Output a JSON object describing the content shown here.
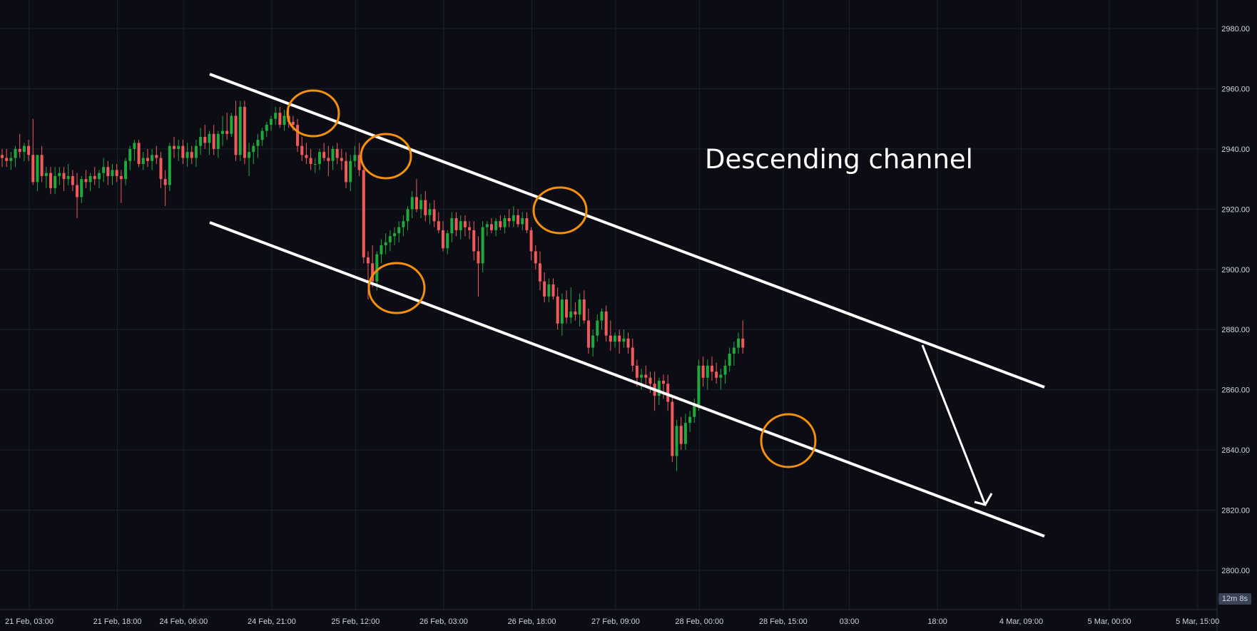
{
  "chart_data": {
    "type": "candlestick",
    "title": "",
    "annotation_text": "Descending channel",
    "ylim": [
      2790,
      2991
    ],
    "y_ticks": [
      "2980.00",
      "2960.00",
      "2940.00",
      "2920.00",
      "2900.00",
      "2880.00",
      "2860.00",
      "2840.00",
      "2820.00",
      "2800.00"
    ],
    "y_tick_values": [
      2980,
      2960,
      2940,
      2920,
      2900,
      2880,
      2860,
      2840,
      2820,
      2800
    ],
    "x_ticks": [
      "21 Feb, 03:00",
      "21 Feb, 18:00",
      "24 Feb, 06:00",
      "24 Feb, 21:00",
      "25 Feb, 12:00",
      "26 Feb, 03:00",
      "26 Feb, 18:00",
      "27 Feb, 09:00",
      "28 Feb, 00:00",
      "28 Feb, 15:00",
      "03:00",
      "18:00",
      "4 Mar, 09:00",
      "5 Mar, 00:00",
      "5 Mar, 15:00"
    ],
    "x_tick_index": [
      0,
      20,
      35,
      55,
      74,
      94,
      114,
      133,
      152,
      171,
      186,
      206,
      225,
      245,
      265
    ],
    "grid": true,
    "colors": {
      "background": "#0c0d14",
      "up": "#089981",
      "up_body": "#1fa83c",
      "down": "#f05a5a",
      "grid": "#1d202b",
      "axis_text": "#d1d4dc",
      "lines": "#ffffff",
      "circles": "#f4900c"
    },
    "countdown": "12m 8s",
    "candles": [
      [
        2938,
        2940,
        2934,
        2937
      ],
      [
        2937,
        2940,
        2934,
        2936
      ],
      [
        2936,
        2939,
        2933,
        2937
      ],
      [
        2937,
        2941,
        2934,
        2940
      ],
      [
        2940,
        2945,
        2937,
        2939
      ],
      [
        2939,
        2942,
        2936,
        2941
      ],
      [
        2941,
        2943,
        2936,
        2938
      ],
      [
        2938,
        2950,
        2928,
        2929
      ],
      [
        2929,
        2938,
        2926,
        2938
      ],
      [
        2938,
        2941,
        2929,
        2931
      ],
      [
        2931,
        2934,
        2927,
        2932
      ],
      [
        2932,
        2934,
        2925,
        2927
      ],
      [
        2927,
        2934,
        2925,
        2931
      ],
      [
        2931,
        2934,
        2928,
        2932
      ],
      [
        2932,
        2934,
        2926,
        2930
      ],
      [
        2930,
        2935,
        2928,
        2931
      ],
      [
        2931,
        2933,
        2926,
        2928
      ],
      [
        2928,
        2932,
        2917,
        2924
      ],
      [
        2924,
        2931,
        2922,
        2930
      ],
      [
        2930,
        2933,
        2927,
        2929
      ],
      [
        2929,
        2932,
        2926,
        2931
      ],
      [
        2931,
        2934,
        2928,
        2930
      ],
      [
        2930,
        2933,
        2927,
        2932
      ],
      [
        2932,
        2937,
        2929,
        2934
      ],
      [
        2934,
        2936,
        2928,
        2931
      ],
      [
        2931,
        2935,
        2928,
        2933
      ],
      [
        2933,
        2935,
        2929,
        2931
      ],
      [
        2931,
        2933,
        2922,
        2930
      ],
      [
        2930,
        2937,
        2928,
        2936
      ],
      [
        2936,
        2941,
        2933,
        2940
      ],
      [
        2940,
        2943,
        2936,
        2942
      ],
      [
        2942,
        2943,
        2934,
        2935
      ],
      [
        2935,
        2939,
        2933,
        2937
      ],
      [
        2937,
        2940,
        2934,
        2936
      ],
      [
        2936,
        2940,
        2933,
        2938
      ],
      [
        2938,
        2941,
        2935,
        2937
      ],
      [
        2937,
        2939,
        2927,
        2930
      ],
      [
        2930,
        2933,
        2921,
        2928
      ],
      [
        2928,
        2942,
        2926,
        2941
      ],
      [
        2941,
        2944,
        2937,
        2940
      ],
      [
        2940,
        2943,
        2936,
        2941
      ],
      [
        2941,
        2943,
        2935,
        2937
      ],
      [
        2937,
        2942,
        2934,
        2939
      ],
      [
        2939,
        2941,
        2935,
        2937
      ],
      [
        2937,
        2943,
        2934,
        2941
      ],
      [
        2941,
        2947,
        2938,
        2944
      ],
      [
        2944,
        2948,
        2940,
        2942
      ],
      [
        2942,
        2946,
        2938,
        2945
      ],
      [
        2945,
        2948,
        2938,
        2940
      ],
      [
        2940,
        2946,
        2937,
        2945
      ],
      [
        2945,
        2951,
        2941,
        2946
      ],
      [
        2946,
        2952,
        2943,
        2945
      ],
      [
        2945,
        2952,
        2944,
        2951
      ],
      [
        2951,
        2956,
        2936,
        2938
      ],
      [
        2938,
        2956,
        2936,
        2954
      ],
      [
        2954,
        2956,
        2935,
        2937
      ],
      [
        2937,
        2942,
        2931,
        2939
      ],
      [
        2939,
        2942,
        2935,
        2941
      ],
      [
        2941,
        2945,
        2937,
        2943
      ],
      [
        2943,
        2947,
        2941,
        2946
      ],
      [
        2946,
        2949,
        2944,
        2948
      ],
      [
        2948,
        2951,
        2946,
        2950
      ],
      [
        2950,
        2954,
        2948,
        2952
      ],
      [
        2952,
        2954,
        2947,
        2948
      ],
      [
        2948,
        2953,
        2946,
        2951
      ],
      [
        2951,
        2953,
        2947,
        2949
      ],
      [
        2949,
        2951,
        2946,
        2948
      ],
      [
        2948,
        2950,
        2939,
        2941
      ],
      [
        2941,
        2944,
        2936,
        2938
      ],
      [
        2938,
        2942,
        2935,
        2937
      ],
      [
        2937,
        2940,
        2933,
        2935
      ],
      [
        2935,
        2937,
        2932,
        2935
      ],
      [
        2935,
        2940,
        2933,
        2939
      ],
      [
        2939,
        2942,
        2936,
        2937
      ],
      [
        2937,
        2941,
        2931,
        2936
      ],
      [
        2936,
        2941,
        2933,
        2940
      ],
      [
        2940,
        2942,
        2935,
        2937
      ],
      [
        2937,
        2940,
        2933,
        2936
      ],
      [
        2936,
        2939,
        2927,
        2929
      ],
      [
        2929,
        2938,
        2926,
        2936
      ],
      [
        2936,
        2941,
        2934,
        2938
      ],
      [
        2938,
        2942,
        2931,
        2933
      ],
      [
        2933,
        2934,
        2902,
        2904
      ],
      [
        2904,
        2906,
        2890,
        2902
      ],
      [
        2902,
        2908,
        2894,
        2896
      ],
      [
        2896,
        2906,
        2893,
        2905
      ],
      [
        2905,
        2910,
        2902,
        2908
      ],
      [
        2908,
        2912,
        2905,
        2909
      ],
      [
        2909,
        2913,
        2906,
        2911
      ],
      [
        2911,
        2914,
        2908,
        2912
      ],
      [
        2912,
        2916,
        2909,
        2914
      ],
      [
        2914,
        2918,
        2911,
        2916
      ],
      [
        2916,
        2921,
        2913,
        2920
      ],
      [
        2920,
        2926,
        2917,
        2924
      ],
      [
        2924,
        2930,
        2919,
        2920
      ],
      [
        2920,
        2925,
        2917,
        2923
      ],
      [
        2923,
        2926,
        2916,
        2918
      ],
      [
        2918,
        2922,
        2915,
        2920
      ],
      [
        2920,
        2923,
        2914,
        2916
      ],
      [
        2916,
        2919,
        2912,
        2913
      ],
      [
        2913,
        2916,
        2906,
        2907
      ],
      [
        2907,
        2913,
        2905,
        2912
      ],
      [
        2912,
        2919,
        2909,
        2917
      ],
      [
        2917,
        2919,
        2911,
        2913
      ],
      [
        2913,
        2918,
        2910,
        2916
      ],
      [
        2916,
        2918,
        2911,
        2914
      ],
      [
        2914,
        2916,
        2910,
        2913
      ],
      [
        2913,
        2916,
        2903,
        2906
      ],
      [
        2906,
        2911,
        2891,
        2902
      ],
      [
        2902,
        2916,
        2899,
        2914
      ],
      [
        2914,
        2916,
        2911,
        2915
      ],
      [
        2915,
        2917,
        2912,
        2913
      ],
      [
        2913,
        2917,
        2911,
        2916
      ],
      [
        2916,
        2918,
        2913,
        2914
      ],
      [
        2914,
        2918,
        2912,
        2917
      ],
      [
        2917,
        2920,
        2914,
        2916
      ],
      [
        2916,
        2921,
        2914,
        2918
      ],
      [
        2918,
        2920,
        2914,
        2915
      ],
      [
        2915,
        2919,
        2913,
        2917
      ],
      [
        2917,
        2919,
        2912,
        2913
      ],
      [
        2913,
        2914,
        2903,
        2906
      ],
      [
        2906,
        2908,
        2900,
        2902
      ],
      [
        2902,
        2906,
        2893,
        2896
      ],
      [
        2896,
        2899,
        2889,
        2891
      ],
      [
        2891,
        2897,
        2889,
        2895
      ],
      [
        2895,
        2897,
        2890,
        2891
      ],
      [
        2891,
        2894,
        2880,
        2882
      ],
      [
        2882,
        2892,
        2878,
        2890
      ],
      [
        2890,
        2893,
        2882,
        2884
      ],
      [
        2884,
        2894,
        2882,
        2886
      ],
      [
        2886,
        2889,
        2883,
        2885
      ],
      [
        2885,
        2892,
        2881,
        2890
      ],
      [
        2890,
        2893,
        2882,
        2883
      ],
      [
        2883,
        2887,
        2872,
        2874
      ],
      [
        2874,
        2880,
        2871,
        2878
      ],
      [
        2878,
        2885,
        2876,
        2883
      ],
      [
        2883,
        2887,
        2880,
        2886
      ],
      [
        2886,
        2888,
        2876,
        2878
      ],
      [
        2878,
        2883,
        2873,
        2876
      ],
      [
        2876,
        2879,
        2874,
        2878
      ],
      [
        2878,
        2880,
        2872,
        2876
      ],
      [
        2876,
        2880,
        2874,
        2877
      ],
      [
        2877,
        2879,
        2872,
        2874
      ],
      [
        2874,
        2877,
        2866,
        2868
      ],
      [
        2868,
        2870,
        2861,
        2864
      ],
      [
        2864,
        2867,
        2860,
        2865
      ],
      [
        2865,
        2868,
        2861,
        2864
      ],
      [
        2864,
        2866,
        2859,
        2862
      ],
      [
        2862,
        2866,
        2853,
        2858
      ],
      [
        2858,
        2864,
        2855,
        2863
      ],
      [
        2863,
        2865,
        2857,
        2862
      ],
      [
        2862,
        2865,
        2853,
        2856
      ],
      [
        2856,
        2858,
        2836,
        2838
      ],
      [
        2838,
        2850,
        2833,
        2848
      ],
      [
        2848,
        2851,
        2840,
        2842
      ],
      [
        2842,
        2852,
        2840,
        2849
      ],
      [
        2849,
        2853,
        2846,
        2851
      ],
      [
        2851,
        2857,
        2849,
        2855
      ],
      [
        2855,
        2870,
        2853,
        2868
      ],
      [
        2868,
        2871,
        2861,
        2864
      ],
      [
        2864,
        2870,
        2860,
        2868
      ],
      [
        2868,
        2871,
        2863,
        2866
      ],
      [
        2866,
        2869,
        2862,
        2864
      ],
      [
        2864,
        2867,
        2860,
        2865
      ],
      [
        2865,
        2870,
        2862,
        2868
      ],
      [
        2868,
        2874,
        2866,
        2872
      ],
      [
        2872,
        2876,
        2868,
        2874
      ],
      [
        2874,
        2879,
        2872,
        2877
      ],
      [
        2877,
        2883,
        2872,
        2874
      ]
    ]
  }
}
